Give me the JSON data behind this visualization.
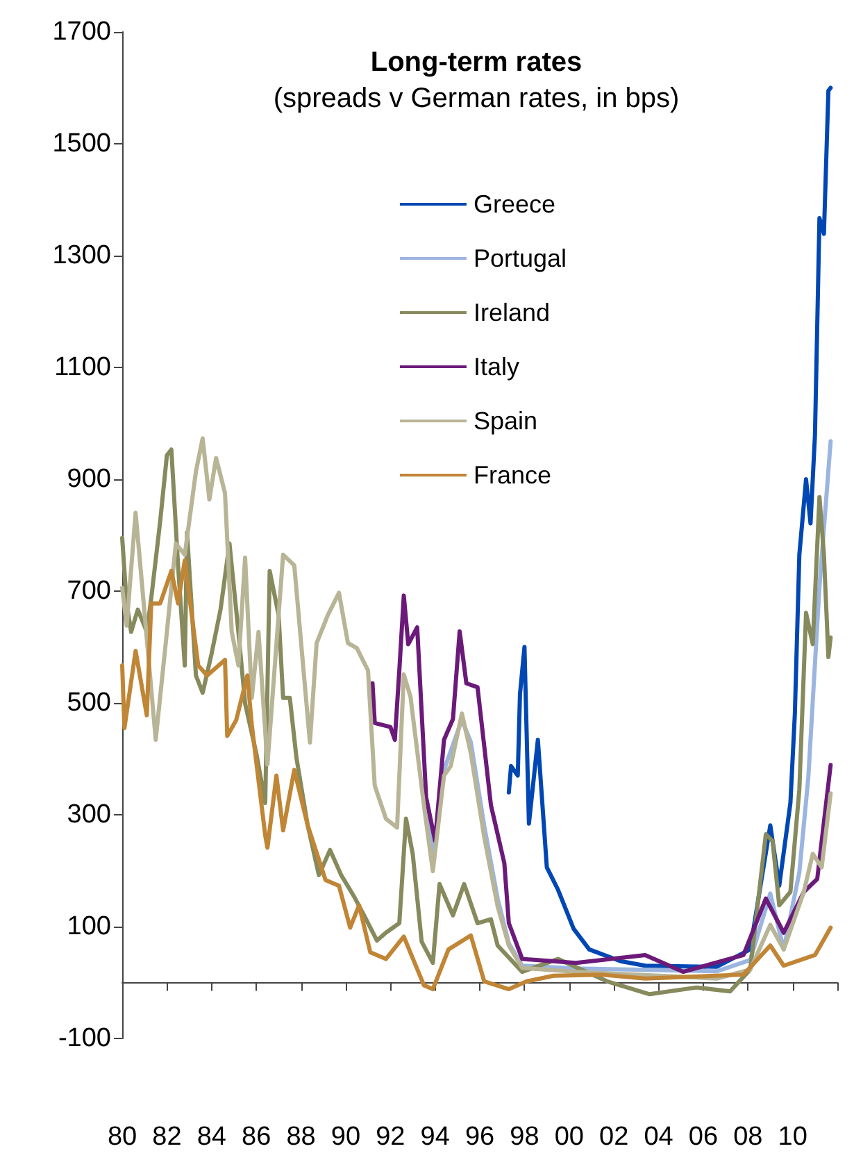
{
  "chart_data": {
    "type": "line",
    "title": "Long-term rates",
    "subtitle": "(spreads v German rates, in bps)",
    "xlim": [
      1980,
      2012
    ],
    "xticks": [
      {
        "value": 1980,
        "label": "80"
      },
      {
        "value": 1982,
        "label": "82"
      },
      {
        "value": 1984,
        "label": "84"
      },
      {
        "value": 1986,
        "label": "86"
      },
      {
        "value": 1988,
        "label": "88"
      },
      {
        "value": 1990,
        "label": "90"
      },
      {
        "value": 1992,
        "label": "92"
      },
      {
        "value": 1994,
        "label": "94"
      },
      {
        "value": 1996,
        "label": "96"
      },
      {
        "value": 1998,
        "label": "98"
      },
      {
        "value": 2000,
        "label": "00"
      },
      {
        "value": 2002,
        "label": "02"
      },
      {
        "value": 2004,
        "label": "04"
      },
      {
        "value": 2006,
        "label": "06"
      },
      {
        "value": 2008,
        "label": "08"
      },
      {
        "value": 2010,
        "label": "10"
      },
      {
        "value": 2012,
        "label": null
      }
    ],
    "ylim": [
      -100,
      1700
    ],
    "yticks": [
      -100,
      100,
      300,
      500,
      700,
      900,
      1100,
      1300,
      1500,
      1700
    ],
    "grid": false,
    "legend": "top right",
    "marker": "none",
    "line_style": "solid",
    "series": [
      {
        "name": "Greece",
        "color": "#0047b3",
        "x": [
          1997.3,
          1997.4,
          1997.7,
          1997.8,
          1998.0,
          1998.2,
          1998.6,
          1999.0,
          1999.5,
          2000.2,
          2000.9,
          2002.3,
          2003.4,
          2006.6,
          2008.1,
          2009.0,
          2009.4,
          2009.9,
          2010.1,
          2010.3,
          2010.6,
          2010.8,
          2011.0,
          2011.2,
          2011.4,
          2011.6,
          2011.7
        ],
        "values": [
          340,
          387,
          370,
          516,
          600,
          284,
          434,
          206,
          166,
          96,
          59,
          38,
          30,
          28,
          59,
          281,
          173,
          321,
          481,
          765,
          900,
          821,
          980,
          1367,
          1339,
          1595,
          1600
        ]
      },
      {
        "name": "Portugal",
        "color": "#9bb5e0",
        "x": [
          1993.5,
          1993.9,
          1994.4,
          1995.2,
          1995.6,
          1996.2,
          1996.8,
          1997.3,
          1997.9,
          2000.3,
          2006.6,
          2008.1,
          2009.0,
          2009.6,
          2010.3,
          2010.7,
          2011.2,
          2011.7
        ],
        "values": [
          330,
          230,
          380,
          470,
          430,
          280,
          150,
          70,
          30,
          25,
          20,
          40,
          159,
          59,
          197,
          366,
          708,
          968
        ]
      },
      {
        "name": "Ireland",
        "color": "#868a5c",
        "x": [
          1980.0,
          1980.2,
          1980.4,
          1980.7,
          1981.1,
          1981.3,
          1981.7,
          1982.0,
          1982.2,
          1982.5,
          1982.8,
          1982.9,
          1983.3,
          1983.6,
          1984.0,
          1984.4,
          1984.8,
          1985.2,
          1985.5,
          1986.0,
          1986.4,
          1986.6,
          1987.0,
          1987.2,
          1987.5,
          1987.8,
          1988.3,
          1988.8,
          1989.3,
          1989.8,
          1990.4,
          1990.9,
          1991.4,
          1991.8,
          1992.4,
          1992.7,
          1993.0,
          1993.4,
          1993.9,
          1994.2,
          1994.8,
          1995.3,
          1995.9,
          1996.5,
          1996.8,
          1997.9,
          1999.5,
          2001.7,
          2003.6,
          2005.7,
          2007.2,
          2008.1,
          2008.8,
          2009.1,
          2009.4,
          2009.9,
          2010.3,
          2010.6,
          2010.9,
          2011.2,
          2011.4,
          2011.6,
          2011.7
        ],
        "values": [
          795,
          677,
          627,
          667,
          627,
          687,
          825,
          943,
          953,
          746,
          567,
          805,
          549,
          518,
          588,
          667,
          785,
          627,
          499,
          410,
          321,
          736,
          657,
          509,
          509,
          401,
          281,
          192,
          237,
          192,
          152,
          114,
          75,
          89,
          106,
          293,
          230,
          73,
          35,
          176,
          120,
          176,
          106,
          113,
          66,
          19,
          42,
          2,
          -21,
          -9,
          -16,
          23,
          265,
          253,
          138,
          162,
          345,
          661,
          605,
          868,
          765,
          582,
          617
        ]
      },
      {
        "name": "Italy",
        "color": "#6b1a7a",
        "x": [
          1991.2,
          1991.3,
          1992.0,
          1992.2,
          1992.4,
          1992.6,
          1992.8,
          1993.2,
          1993.6,
          1994.0,
          1994.4,
          1994.8,
          1995.1,
          1995.4,
          1995.9,
          1996.5,
          1997.1,
          1997.3,
          1997.9,
          2000.3,
          2003.4,
          2005.1,
          2007.8,
          2008.8,
          2009.6,
          2010.5,
          2011.1,
          2011.7
        ],
        "values": [
          535,
          464,
          457,
          434,
          558,
          692,
          605,
          635,
          331,
          253,
          434,
          471,
          628,
          535,
          528,
          317,
          213,
          106,
          42,
          35,
          49,
          19,
          49,
          150,
          89,
          162,
          185,
          389
        ]
      },
      {
        "name": "Spain",
        "color": "#b8b496",
        "x": [
          1980.0,
          1980.2,
          1980.6,
          1980.9,
          1981.5,
          1982.0,
          1982.4,
          1982.8,
          1983.3,
          1983.6,
          1983.9,
          1984.2,
          1984.6,
          1984.9,
          1985.2,
          1985.5,
          1985.8,
          1986.1,
          1986.5,
          1987.2,
          1987.7,
          1988.4,
          1988.7,
          1989.2,
          1989.7,
          1990.1,
          1990.5,
          1991.0,
          1991.3,
          1991.8,
          1992.3,
          1992.6,
          1992.9,
          1993.5,
          1993.9,
          1994.4,
          1994.7,
          1995.2,
          1995.6,
          1996.2,
          1996.8,
          1997.3,
          1997.9,
          2000.3,
          2006.6,
          2008.1,
          2009.0,
          2009.6,
          2010.5,
          2010.9,
          2011.3,
          2011.7
        ],
        "values": [
          706,
          638,
          840,
          706,
          434,
          627,
          785,
          765,
          914,
          973,
          864,
          938,
          875,
          627,
          567,
          760,
          509,
          627,
          390,
          765,
          746,
          429,
          607,
          657,
          697,
          607,
          598,
          558,
          352,
          293,
          277,
          551,
          511,
          317,
          199,
          370,
          387,
          481,
          410,
          260,
          136,
          66,
          26,
          19,
          7,
          23,
          103,
          59,
          162,
          230,
          206,
          338
        ]
      },
      {
        "name": "France",
        "color": "#c08535",
        "x": [
          1980.0,
          1980.1,
          1980.6,
          1981.1,
          1981.3,
          1981.7,
          1982.2,
          1982.5,
          1982.8,
          1983.4,
          1983.8,
          1984.6,
          1984.7,
          1985.1,
          1985.6,
          1985.8,
          1986.4,
          1986.5,
          1986.9,
          1987.2,
          1987.7,
          1988.3,
          1989.1,
          1989.7,
          1990.2,
          1990.6,
          1991.1,
          1991.8,
          1992.6,
          1993.5,
          1993.9,
          1994.6,
          1995.6,
          1996.2,
          1997.3,
          1998.1,
          1999.3,
          2001.4,
          2003.4,
          2007.8,
          2009.0,
          2009.6,
          2011.0,
          2011.7
        ],
        "values": [
          567,
          455,
          593,
          478,
          678,
          678,
          736,
          678,
          755,
          567,
          549,
          577,
          441,
          469,
          549,
          460,
          263,
          241,
          370,
          272,
          380,
          281,
          183,
          173,
          98,
          138,
          54,
          42,
          82,
          -5,
          -12,
          59,
          84,
          2,
          -12,
          2,
          12,
          14,
          7,
          14,
          66,
          30,
          49,
          98
        ]
      }
    ]
  }
}
